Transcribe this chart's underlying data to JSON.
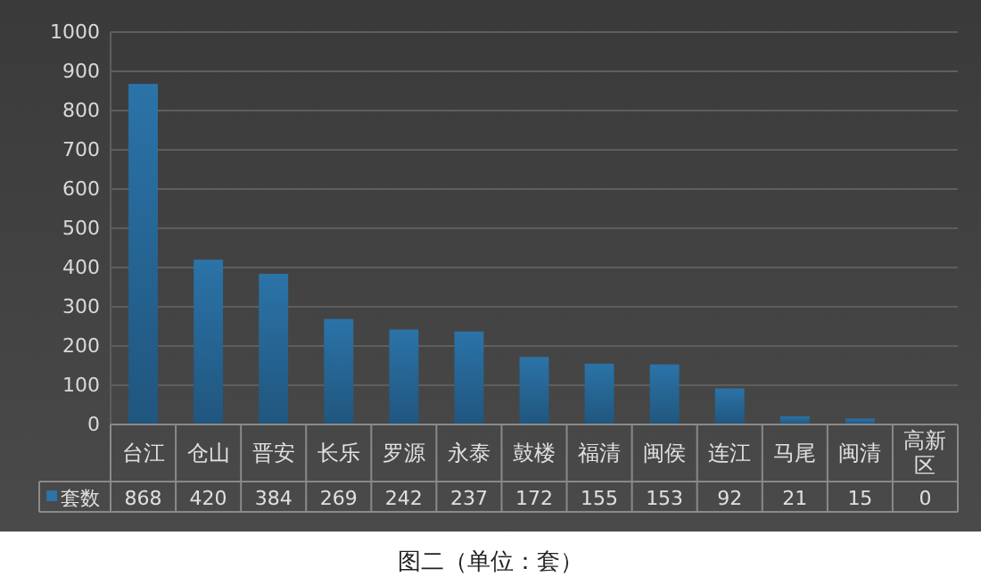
{
  "chart_data": {
    "type": "bar",
    "title": "图二（单位：套）",
    "categories": [
      "台江",
      "仓山",
      "晋安",
      "长乐",
      "罗源",
      "永泰",
      "鼓楼",
      "福清",
      "闽侯",
      "连江",
      "马尾",
      "闽清",
      "高新区"
    ],
    "series": [
      {
        "name": "套数",
        "color": "#2b73a8",
        "values": [
          868,
          420,
          384,
          269,
          242,
          237,
          172,
          155,
          153,
          92,
          21,
          15,
          0
        ]
      }
    ],
    "ylim": [
      0,
      1000
    ],
    "yticks": [
      0,
      100,
      200,
      300,
      400,
      500,
      600,
      700,
      800,
      900,
      1000
    ],
    "grid": "y",
    "legend": "bottom left",
    "data_labels": true
  }
}
